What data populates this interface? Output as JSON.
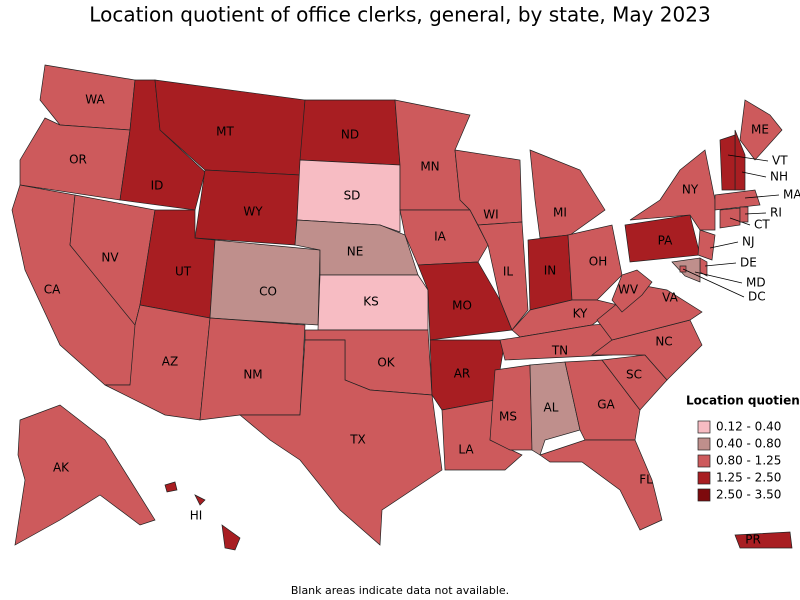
{
  "title": "Location quotient of office clerks, general, by state, May 2023",
  "legend": {
    "title": "Location quotient",
    "bins": [
      {
        "label": "0.12 - 0.40",
        "color": "#f7bcc3"
      },
      {
        "label": "0.40 - 0.80",
        "color": "#bf8f8c"
      },
      {
        "label": "0.80 - 1.25",
        "color": "#cd5a5c"
      },
      {
        "label": "1.25 - 2.50",
        "color": "#a81e22"
      },
      {
        "label": "2.50 - 3.50",
        "color": "#7d0a0d"
      }
    ]
  },
  "states": [
    {
      "label": "WA",
      "bin": "0.80 - 1.25"
    },
    {
      "label": "OR",
      "bin": "0.80 - 1.25"
    },
    {
      "label": "CA",
      "bin": "0.80 - 1.25"
    },
    {
      "label": "NV",
      "bin": "0.80 - 1.25"
    },
    {
      "label": "ID",
      "bin": "1.25 - 2.50"
    },
    {
      "label": "MT",
      "bin": "1.25 - 2.50"
    },
    {
      "label": "WY",
      "bin": "1.25 - 2.50"
    },
    {
      "label": "UT",
      "bin": "1.25 - 2.50"
    },
    {
      "label": "CO",
      "bin": "0.40 - 0.80"
    },
    {
      "label": "AZ",
      "bin": "0.80 - 1.25"
    },
    {
      "label": "NM",
      "bin": "0.80 - 1.25"
    },
    {
      "label": "ND",
      "bin": "1.25 - 2.50"
    },
    {
      "label": "SD",
      "bin": "0.12 - 0.40"
    },
    {
      "label": "NE",
      "bin": "0.40 - 0.80"
    },
    {
      "label": "KS",
      "bin": "0.12 - 0.40"
    },
    {
      "label": "OK",
      "bin": "0.80 - 1.25"
    },
    {
      "label": "TX",
      "bin": "0.80 - 1.25"
    },
    {
      "label": "MN",
      "bin": "0.80 - 1.25"
    },
    {
      "label": "IA",
      "bin": "0.80 - 1.25"
    },
    {
      "label": "MO",
      "bin": "1.25 - 2.50"
    },
    {
      "label": "AR",
      "bin": "1.25 - 2.50"
    },
    {
      "label": "LA",
      "bin": "0.80 - 1.25"
    },
    {
      "label": "WI",
      "bin": "0.80 - 1.25"
    },
    {
      "label": "IL",
      "bin": "0.80 - 1.25"
    },
    {
      "label": "MI",
      "bin": "0.80 - 1.25"
    },
    {
      "label": "IN",
      "bin": "1.25 - 2.50"
    },
    {
      "label": "OH",
      "bin": "0.80 - 1.25"
    },
    {
      "label": "KY",
      "bin": "0.80 - 1.25"
    },
    {
      "label": "TN",
      "bin": "0.80 - 1.25"
    },
    {
      "label": "MS",
      "bin": "0.80 - 1.25"
    },
    {
      "label": "AL",
      "bin": "0.40 - 0.80"
    },
    {
      "label": "GA",
      "bin": "0.80 - 1.25"
    },
    {
      "label": "FL",
      "bin": "0.80 - 1.25"
    },
    {
      "label": "SC",
      "bin": "0.80 - 1.25"
    },
    {
      "label": "NC",
      "bin": "0.80 - 1.25"
    },
    {
      "label": "VA",
      "bin": "0.80 - 1.25"
    },
    {
      "label": "WV",
      "bin": "0.80 - 1.25"
    },
    {
      "label": "PA",
      "bin": "1.25 - 2.50"
    },
    {
      "label": "NY",
      "bin": "0.80 - 1.25"
    },
    {
      "label": "NJ",
      "bin": "0.80 - 1.25"
    },
    {
      "label": "DE",
      "bin": "0.80 - 1.25"
    },
    {
      "label": "MD",
      "bin": "0.40 - 0.80"
    },
    {
      "label": "DC",
      "bin": "0.80 - 1.25"
    },
    {
      "label": "ME",
      "bin": "0.80 - 1.25"
    },
    {
      "label": "NH",
      "bin": "1.25 - 2.50"
    },
    {
      "label": "VT",
      "bin": "1.25 - 2.50"
    },
    {
      "label": "MA",
      "bin": "0.80 - 1.25"
    },
    {
      "label": "CT",
      "bin": "0.80 - 1.25"
    },
    {
      "label": "RI",
      "bin": "0.80 - 1.25"
    },
    {
      "label": "AK",
      "bin": "0.80 - 1.25"
    },
    {
      "label": "HI",
      "bin": "1.25 - 2.50"
    },
    {
      "label": "PR",
      "bin": "1.25 - 2.50"
    }
  ],
  "footnote": "Blank areas indicate data not available."
}
